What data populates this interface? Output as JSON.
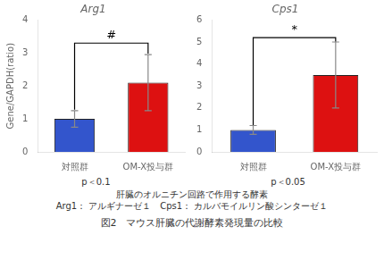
{
  "chart_data": [
    {
      "type": "bar",
      "title": "Arg1",
      "categories": [
        "対照群",
        "OM-X投与群"
      ],
      "values": [
        1.0,
        2.1
      ],
      "errors": [
        0.25,
        0.85
      ],
      "colors": [
        "#3355cc",
        "#dd1111"
      ],
      "ylabel": "Gene/GAPDH(ratio)",
      "ylim": [
        0,
        4
      ],
      "yticks": [
        0,
        1,
        2,
        3,
        4
      ],
      "grid": false,
      "significance": {
        "label": "#",
        "top": 3.3,
        "left_bottom": 1.28,
        "right_bottom": 2.98
      },
      "annotation": "p＜0.1"
    },
    {
      "type": "bar",
      "title": "Cps1",
      "categories": [
        "対照群",
        "OM-X投与群"
      ],
      "values": [
        1.0,
        3.5
      ],
      "errors": [
        0.2,
        1.5
      ],
      "colors": [
        "#3355cc",
        "#dd1111"
      ],
      "ylim": [
        0,
        6
      ],
      "yticks": [
        0,
        1,
        2,
        3,
        4,
        5,
        6
      ],
      "grid": false,
      "significance": {
        "label": "*",
        "top": 5.2,
        "left_bottom": 1.22,
        "right_bottom": 5.02
      },
      "annotation": "p＜0.05"
    }
  ],
  "footnotes": [
    "肝臓のオルニチン回路で作用する酵素",
    "Arg1： アルギナーゼ１　Cps1： カルバモイルリン酸シンターゼ１"
  ],
  "caption": "図2　マウス肝臓の代謝酵素発現量の比較"
}
